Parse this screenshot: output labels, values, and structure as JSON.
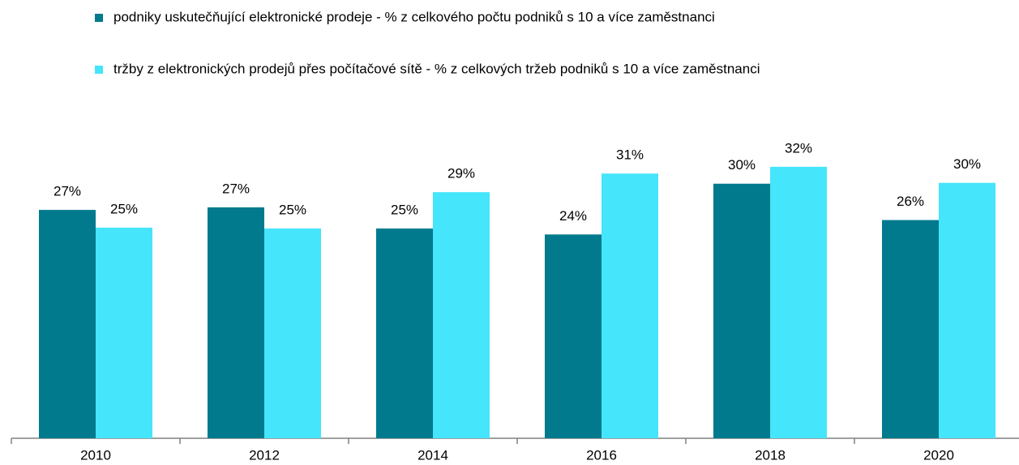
{
  "chart_data": {
    "type": "bar",
    "categories": [
      "2010",
      "2012",
      "2014",
      "2016",
      "2018",
      "2020"
    ],
    "series": [
      {
        "name": "podniky uskutečňující elektronické prodeje - % z celkového počtu podniků s 10 a více zaměstnanci",
        "color": "#007a8c",
        "values": [
          27.0,
          27.3,
          24.8,
          24.1,
          30.1,
          25.8
        ],
        "value_labels": [
          "27%",
          "27%",
          "25%",
          "24%",
          "30%",
          "26%"
        ]
      },
      {
        "name": "tržby z elektronických prodejů přes počítačové sítě - % z celkových tržeb podniků s 10 a více zaměstnanci",
        "color": "#45e5fb",
        "values": [
          24.9,
          24.8,
          29.1,
          31.3,
          32.1,
          30.2
        ],
        "value_labels": [
          "25%",
          "25%",
          "29%",
          "31%",
          "32%",
          "30%"
        ]
      }
    ]
  }
}
